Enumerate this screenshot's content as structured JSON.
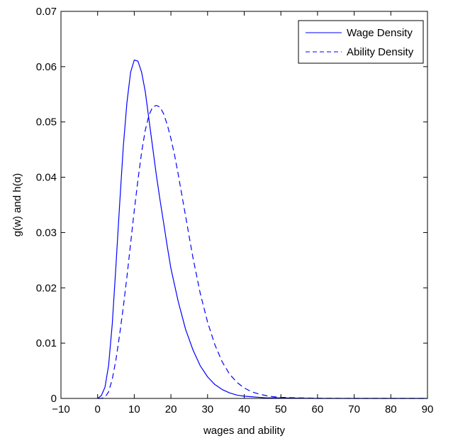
{
  "chart_data": {
    "type": "line",
    "title": "",
    "xlabel": "wages and ability",
    "ylabel": "g(w) and h(α)",
    "xlim": [
      -10,
      90
    ],
    "ylim": [
      0,
      0.07
    ],
    "xticks": [
      -10,
      0,
      10,
      20,
      30,
      40,
      50,
      60,
      70,
      80,
      90
    ],
    "yticks": [
      0,
      0.01,
      0.02,
      0.03,
      0.04,
      0.05,
      0.06,
      0.07
    ],
    "xtick_labels": [
      "−10",
      "0",
      "10",
      "20",
      "30",
      "40",
      "50",
      "60",
      "70",
      "80",
      "90"
    ],
    "ytick_labels": [
      "0",
      "0.01",
      "0.02",
      "0.03",
      "0.04",
      "0.05",
      "0.06",
      "0.07"
    ],
    "grid": false,
    "legend_position": "top-right",
    "series": [
      {
        "name": "Wage Density",
        "style": "solid",
        "color": "#0000ff",
        "x": [
          0,
          1,
          2,
          3,
          4,
          5,
          6,
          7,
          8,
          9,
          10,
          11,
          12,
          13,
          14,
          15,
          16,
          17,
          18,
          19,
          20,
          22,
          24,
          26,
          28,
          30,
          32,
          34,
          36,
          38,
          40,
          42,
          44,
          46,
          48,
          50,
          55,
          60,
          70,
          80,
          90
        ],
        "y": [
          0,
          0.0005,
          0.002,
          0.006,
          0.0135,
          0.024,
          0.035,
          0.0455,
          0.0535,
          0.059,
          0.0612,
          0.061,
          0.059,
          0.0555,
          0.0505,
          0.0455,
          0.0405,
          0.036,
          0.0318,
          0.0275,
          0.0235,
          0.0175,
          0.0125,
          0.0088,
          0.0059,
          0.0039,
          0.0025,
          0.0016,
          0.001,
          0.0006,
          0.0004,
          0.0003,
          0.0002,
          0.0001,
          0.0001,
          0.0001,
          5e-05,
          0,
          0,
          0,
          0
        ]
      },
      {
        "name": "Ability Density",
        "style": "dashed",
        "color": "#0000ff",
        "x": [
          0,
          1,
          2,
          3,
          4,
          5,
          6,
          7,
          8,
          9,
          10,
          11,
          12,
          13,
          14,
          15,
          16,
          17,
          18,
          19,
          20,
          21,
          22,
          23,
          24,
          25,
          26,
          28,
          30,
          32,
          34,
          36,
          38,
          40,
          42,
          44,
          46,
          48,
          50,
          55,
          60,
          70,
          80,
          90
        ],
        "y": [
          0,
          0,
          0.0002,
          0.0012,
          0.0035,
          0.007,
          0.0115,
          0.0165,
          0.022,
          0.028,
          0.034,
          0.0395,
          0.0445,
          0.0485,
          0.0512,
          0.0527,
          0.053,
          0.0527,
          0.0515,
          0.0495,
          0.047,
          0.044,
          0.0405,
          0.0367,
          0.033,
          0.0292,
          0.0255,
          0.019,
          0.0138,
          0.0097,
          0.0066,
          0.0044,
          0.0029,
          0.0019,
          0.0012,
          0.0008,
          0.0005,
          0.0003,
          0.0002,
          0.0001,
          3e-05,
          0,
          0,
          0
        ]
      }
    ]
  }
}
